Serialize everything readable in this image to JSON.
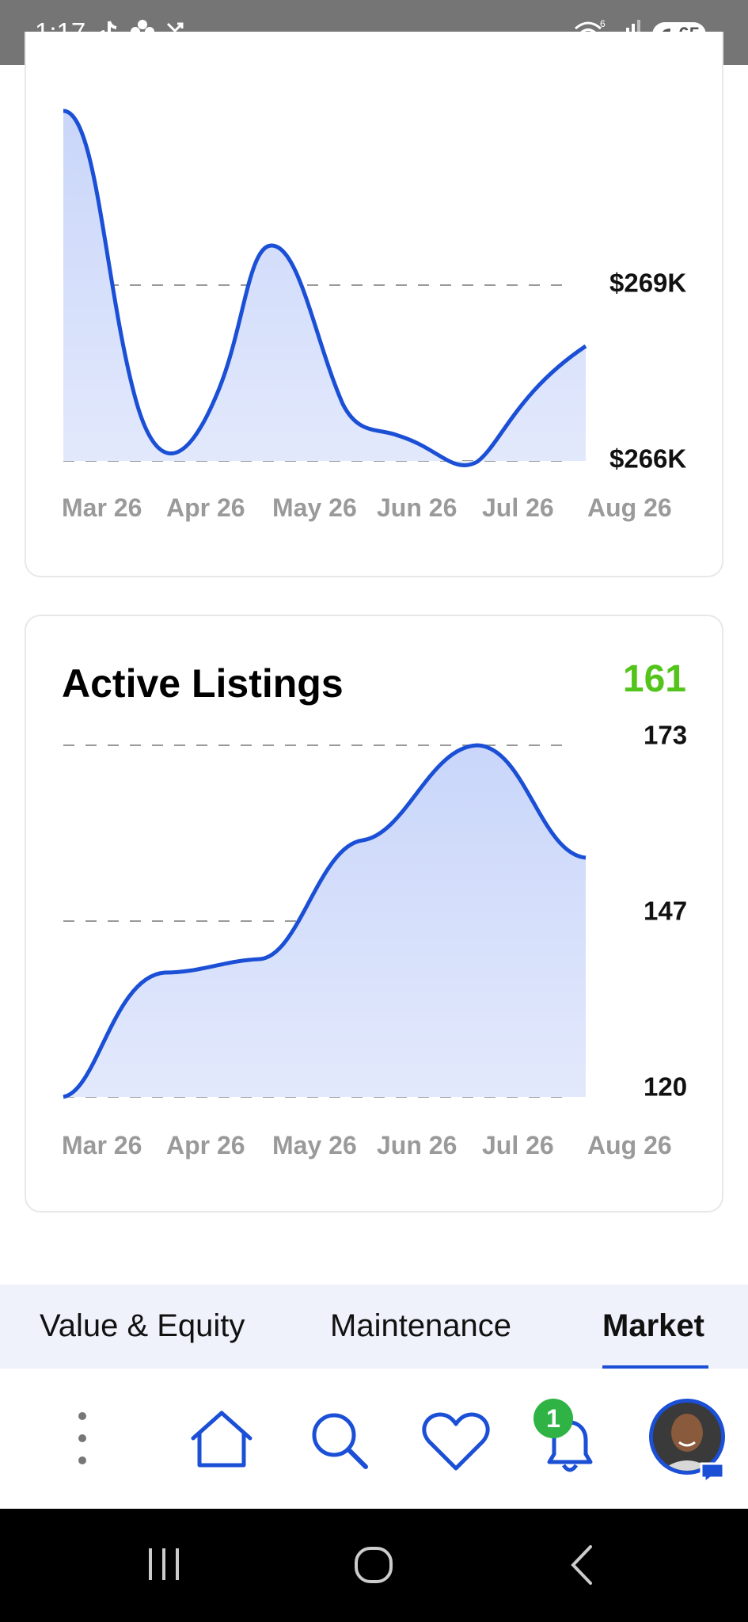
{
  "status_bar": {
    "time": "1:17",
    "battery": "65",
    "wifi_label": "6",
    "icons": [
      "tiktok-icon",
      "pinwheel-icon",
      "missed-call-icon",
      "wifi-icon",
      "signal-icon",
      "battery-icon"
    ]
  },
  "colors": {
    "accent": "#1a4fd6",
    "area_fill": "#d4defb",
    "positive": "#52c41a",
    "badge": "#2fb344"
  },
  "card1": {
    "ylabels": [
      "$269K",
      "$266K"
    ],
    "chart_data": {
      "type": "area",
      "x": [
        "Mar 26",
        "Apr 26",
        "May 26",
        "Jun 26",
        "Jul 26",
        "Aug 26"
      ],
      "y_ticks": [
        "$269K",
        "$266K"
      ],
      "y_values": [
        271.0,
        266.35,
        269.65,
        266.9,
        266.0,
        267.95
      ],
      "grid": true
    }
  },
  "card2": {
    "title": "Active Listings",
    "value": "161",
    "ylabels": [
      "173",
      "147",
      "120"
    ],
    "chart_data": {
      "type": "area",
      "x": [
        "Mar 26",
        "Apr 26",
        "May 26",
        "Jun 26",
        "Jul 26",
        "Aug 26"
      ],
      "y_ticks": [
        173,
        147,
        120
      ],
      "y_values": [
        120,
        138,
        140.5,
        156.5,
        173,
        156
      ],
      "grid": true
    }
  },
  "xlabels": [
    "Mar 26",
    "Apr 26",
    "May 26",
    "Jun 26",
    "Jul 26",
    "Aug 26"
  ],
  "tabs": [
    {
      "label": "Value & Equity",
      "active": false
    },
    {
      "label": "Maintenance",
      "active": false
    },
    {
      "label": "Market",
      "active": true
    }
  ],
  "bottom_nav": {
    "items": [
      "more-icon",
      "home-icon",
      "search-icon",
      "heart-icon",
      "bell-icon",
      "avatar"
    ],
    "notification_count": "1"
  },
  "system_nav": [
    "recent-apps-icon",
    "home-circle-icon",
    "back-icon"
  ]
}
